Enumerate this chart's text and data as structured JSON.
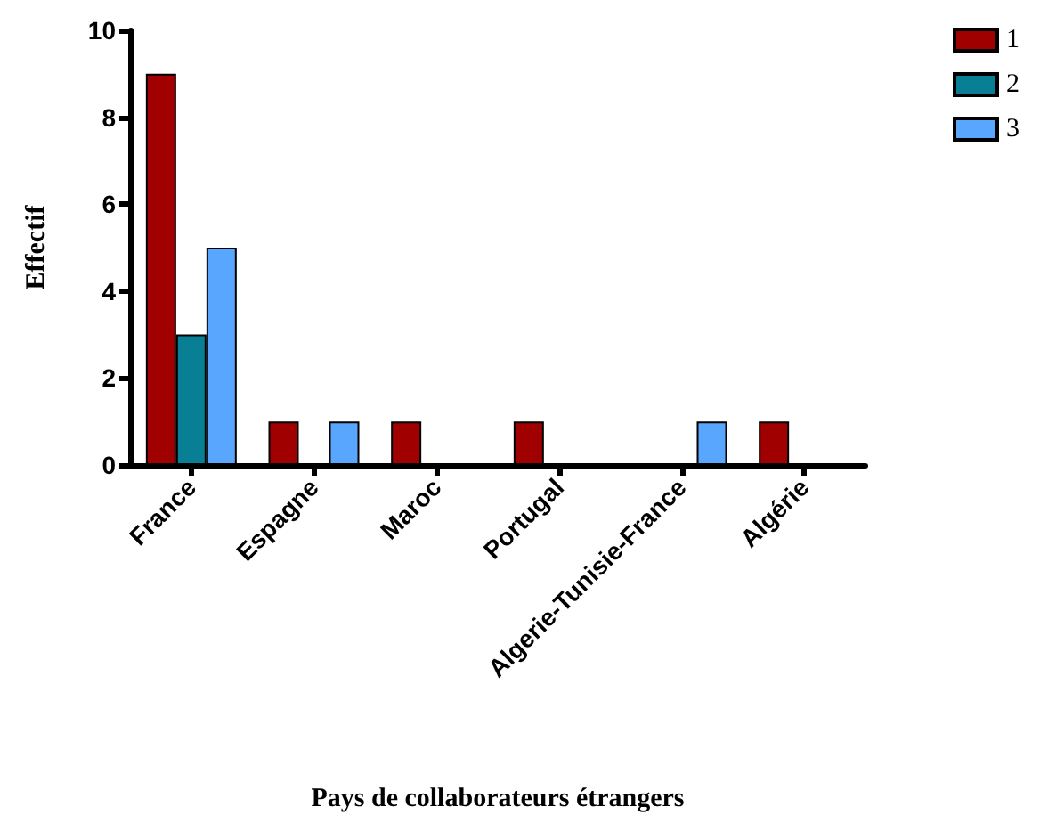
{
  "chart_data": {
    "type": "bar",
    "xlabel": "Pays de collaborateurs étrangers",
    "ylabel": "Effectif",
    "categories": [
      "France",
      "Espagne",
      "Maroc",
      "Portugal",
      "Algerie-Tunisie-France",
      "Algérie"
    ],
    "series": [
      {
        "name": "1",
        "color": "#a00000",
        "values": [
          9,
          1,
          1,
          1,
          null,
          1
        ]
      },
      {
        "name": "2",
        "color": "#087f94",
        "values": [
          3,
          null,
          null,
          null,
          null,
          null
        ]
      },
      {
        "name": "3",
        "color": "#59a6ff",
        "values": [
          5,
          1,
          null,
          null,
          1,
          null
        ]
      }
    ],
    "ylim": [
      0,
      10
    ],
    "yticks": [
      0,
      2,
      4,
      6,
      8,
      10
    ],
    "grid": false,
    "legend": "top right"
  }
}
